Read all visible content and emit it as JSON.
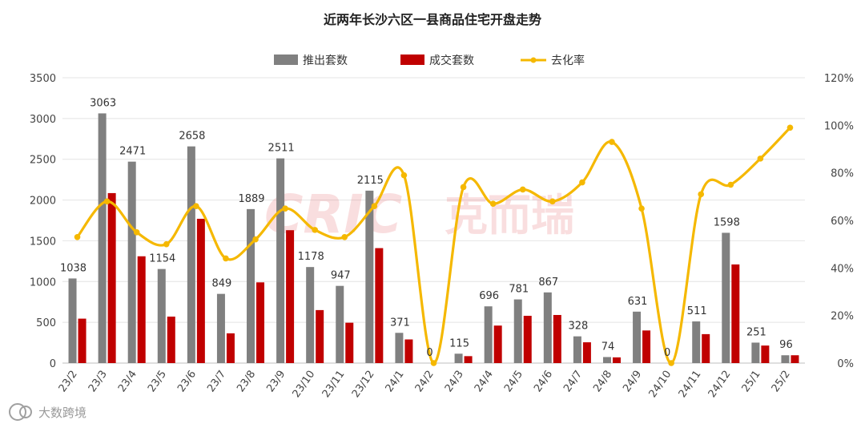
{
  "chart_data": {
    "type": "bar",
    "title": "近两年长沙六区一县商品住宅开盘走势",
    "categories": [
      "23/2",
      "23/3",
      "23/4",
      "23/5",
      "23/6",
      "23/7",
      "23/8",
      "23/9",
      "23/10",
      "23/11",
      "23/12",
      "24/1",
      "24/2",
      "24/3",
      "24/4",
      "24/5",
      "24/6",
      "24/7",
      "24/8",
      "24/9",
      "24/10",
      "24/11",
      "24/12",
      "25/1",
      "25/2"
    ],
    "series": [
      {
        "name": "推出套数",
        "type": "bar",
        "axis": "left",
        "color": "#808080",
        "values": [
          1038,
          3063,
          2471,
          1154,
          2658,
          849,
          1889,
          2511,
          1178,
          947,
          2115,
          371,
          0,
          115,
          696,
          781,
          867,
          328,
          74,
          631,
          0,
          511,
          1598,
          251,
          96
        ]
      },
      {
        "name": "成交套数",
        "type": "bar",
        "axis": "left",
        "color": "#c00000",
        "values": [
          545,
          2085,
          1310,
          570,
          1770,
          365,
          990,
          1630,
          650,
          495,
          1410,
          290,
          0,
          85,
          460,
          580,
          590,
          255,
          70,
          400,
          0,
          355,
          1210,
          215,
          96
        ]
      },
      {
        "name": "去化率",
        "type": "line",
        "axis": "right",
        "color": "#f5b800",
        "values": [
          0.53,
          0.68,
          0.55,
          0.5,
          0.66,
          0.44,
          0.52,
          0.65,
          0.56,
          0.53,
          0.66,
          0.79,
          0.0,
          0.74,
          0.67,
          0.73,
          0.68,
          0.76,
          0.93,
          0.65,
          0.0,
          0.71,
          0.75,
          0.86,
          0.99
        ]
      }
    ],
    "y_left": {
      "min": 0,
      "max": 3500,
      "ticks": [
        "0",
        "500",
        "1000",
        "1500",
        "2000",
        "2500",
        "3000",
        "3500"
      ]
    },
    "y_right": {
      "min": 0,
      "max": 1.2,
      "ticks": [
        "0%",
        "20%",
        "40%",
        "60%",
        "80%",
        "100%",
        "120%"
      ]
    },
    "data_labels": [
      "1038",
      "3063",
      "2471",
      "1154",
      "2658",
      "849",
      "1889",
      "2511",
      "1178",
      "947",
      "2115",
      "371",
      "0",
      "115",
      "696",
      "781",
      "867",
      "328",
      "74",
      "631",
      "0",
      "511",
      "1598",
      "251",
      "96"
    ],
    "legend_position": "top",
    "grid": true
  },
  "watermark": {
    "center_brand": "CRIC",
    "center_text": "克而瑞",
    "corner_text": "大数跨境"
  }
}
